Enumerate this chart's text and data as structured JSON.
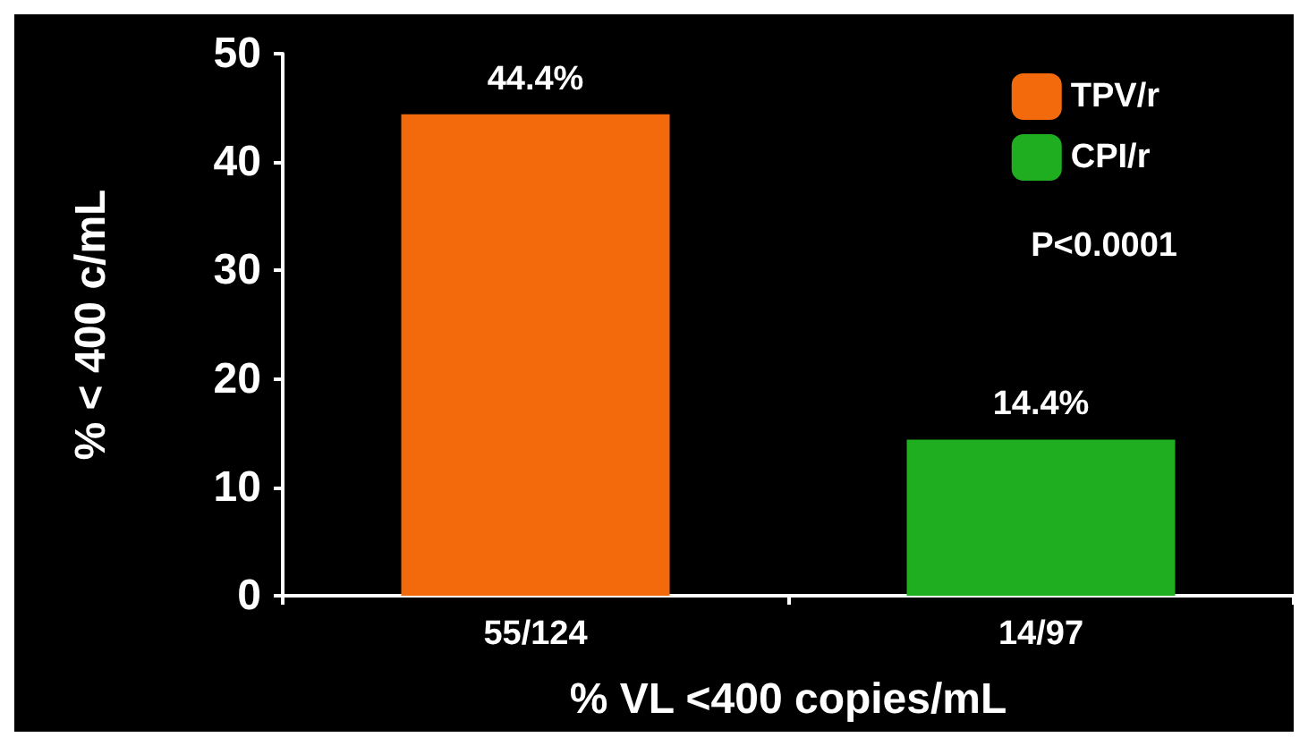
{
  "chart_data": {
    "type": "bar",
    "xlabel": "% VL <400 copies/mL",
    "ylabel": "% < 400 c/mL",
    "categories": [
      "55/124",
      "14/97"
    ],
    "series": [
      {
        "name": "TPV/r",
        "color": "#f26a0c",
        "values": [
          44.4,
          null
        ],
        "value_labels": [
          "44.4%",
          null
        ]
      },
      {
        "name": "CPI/r",
        "color": "#1fae1f",
        "values": [
          null,
          14.4
        ],
        "value_labels": [
          null,
          "14.4%"
        ]
      }
    ],
    "ylim": [
      0,
      50
    ],
    "yticks": [
      0,
      10,
      20,
      30,
      40,
      50
    ],
    "grid": false,
    "legend": "top right",
    "annotations": [
      "P<0.0001"
    ]
  }
}
